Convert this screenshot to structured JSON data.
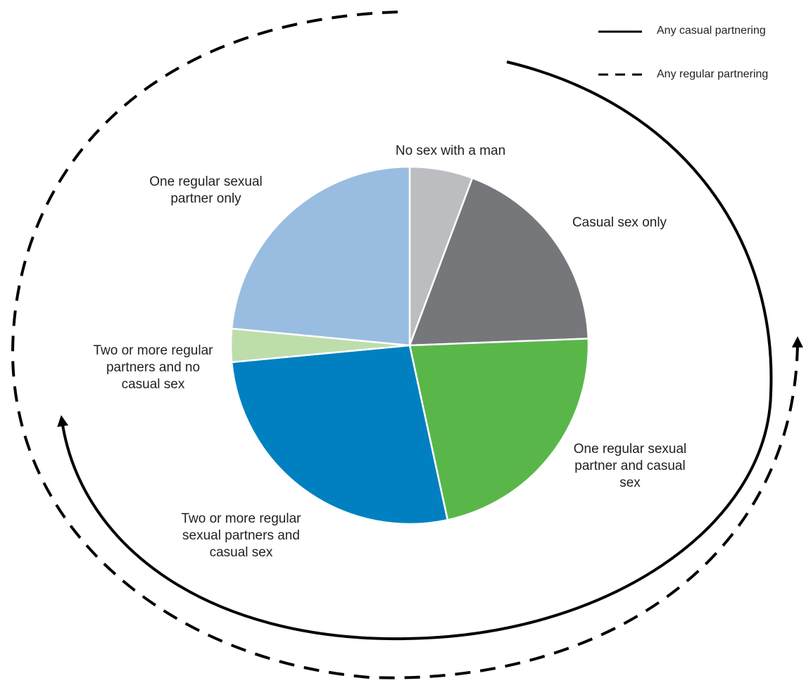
{
  "chart_data": {
    "type": "pie",
    "title": "",
    "categories": [
      "No sex with a man",
      "Casual sex only",
      "One regular sexual partner and casual sex",
      "Two or more regular sexual partners and casual sex",
      "Two or more regular partners and no casual sex",
      "One regular sexual partner only"
    ],
    "values": [
      5.7,
      18.7,
      22.2,
      26.9,
      3.0,
      23.5
    ],
    "colors": [
      "#bcbdc0",
      "#76777b",
      "#59b74a",
      "#0080c1",
      "#bddeab",
      "#99bde0"
    ],
    "slice_labels": [
      [
        "No sex with a man"
      ],
      [
        "Casual sex only"
      ],
      [
        "One regular sexual",
        "partner and casual",
        "sex"
      ],
      [
        "Two or more regular",
        "sexual partners and",
        "casual sex"
      ],
      [
        "Two or more regular",
        "partners and no",
        "casual sex"
      ],
      [
        "One regular sexual",
        "partner only"
      ]
    ],
    "legend": {
      "placement": "top-right",
      "entries": [
        {
          "name": "Any casual partnering",
          "line_style": "solid"
        },
        {
          "name": "Any regular partnering",
          "line_style": "dashed"
        }
      ]
    }
  }
}
